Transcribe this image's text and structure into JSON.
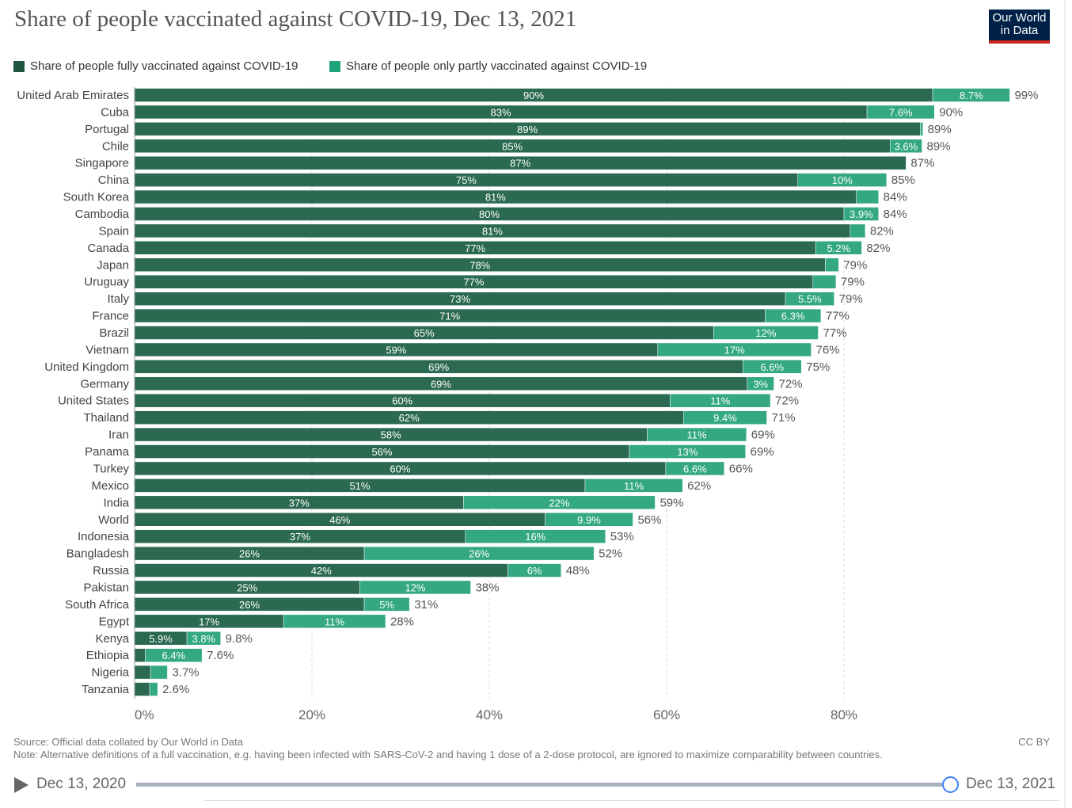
{
  "header": {
    "title": "Share of people vaccinated against COVID-19, Dec 13, 2021",
    "logo_text": "Our World in Data"
  },
  "colors": {
    "full": "#2b6a50",
    "partial": "#33a883"
  },
  "chart_data": {
    "type": "bar",
    "orientation": "horizontal-stacked",
    "title": "Share of people vaccinated against COVID-19, Dec 13, 2021",
    "legend": [
      "Share of people fully vaccinated against COVID-19",
      "Share of people only partly vaccinated against COVID-19"
    ],
    "legend_position": "top-left",
    "xlim": [
      0,
      99
    ],
    "xticks": [
      "0%",
      "20%",
      "40%",
      "60%",
      "80%"
    ],
    "xtick_values": [
      0,
      20,
      40,
      60,
      80
    ],
    "grid": true,
    "rows": [
      {
        "country": "United Arab Emirates",
        "full": 90,
        "partial": 8.7,
        "full_label": "90%",
        "partial_label": "8.7%",
        "total": "99%"
      },
      {
        "country": "Cuba",
        "full": 82.6,
        "partial": 7.6,
        "full_label": "83%",
        "partial_label": "7.6%",
        "total": "90%"
      },
      {
        "country": "Portugal",
        "full": 88.6,
        "partial": 0.3,
        "full_label": "89%",
        "partial_label": null,
        "total": "89%"
      },
      {
        "country": "Chile",
        "full": 85.2,
        "partial": 3.6,
        "full_label": "85%",
        "partial_label": "3.6%",
        "total": "89%"
      },
      {
        "country": "Singapore",
        "full": 87,
        "partial": 0,
        "full_label": "87%",
        "partial_label": null,
        "total": "87%"
      },
      {
        "country": "China",
        "full": 74.8,
        "partial": 10,
        "full_label": "75%",
        "partial_label": "10%",
        "total": "85%"
      },
      {
        "country": "South Korea",
        "full": 81.4,
        "partial": 2.5,
        "full_label": "81%",
        "partial_label": null,
        "total": "84%"
      },
      {
        "country": "Cambodia",
        "full": 80,
        "partial": 3.9,
        "full_label": "80%",
        "partial_label": "3.9%",
        "total": "84%"
      },
      {
        "country": "Spain",
        "full": 80.7,
        "partial": 1.7,
        "full_label": "81%",
        "partial_label": null,
        "total": "82%"
      },
      {
        "country": "Canada",
        "full": 76.8,
        "partial": 5.2,
        "full_label": "77%",
        "partial_label": "5.2%",
        "total": "82%"
      },
      {
        "country": "Japan",
        "full": 77.9,
        "partial": 1.5,
        "full_label": "78%",
        "partial_label": null,
        "total": "79%"
      },
      {
        "country": "Uruguay",
        "full": 76.5,
        "partial": 2.6,
        "full_label": "77%",
        "partial_label": null,
        "total": "79%"
      },
      {
        "country": "Italy",
        "full": 73.4,
        "partial": 5.5,
        "full_label": "73%",
        "partial_label": "5.5%",
        "total": "79%"
      },
      {
        "country": "France",
        "full": 71.1,
        "partial": 6.3,
        "full_label": "71%",
        "partial_label": "6.3%",
        "total": "77%"
      },
      {
        "country": "Brazil",
        "full": 65.3,
        "partial": 11.8,
        "full_label": "65%",
        "partial_label": "12%",
        "total": "77%"
      },
      {
        "country": "Vietnam",
        "full": 59,
        "partial": 17.3,
        "full_label": "59%",
        "partial_label": "17%",
        "total": "76%"
      },
      {
        "country": "United Kingdom",
        "full": 68.6,
        "partial": 6.6,
        "full_label": "69%",
        "partial_label": "6.6%",
        "total": "75%"
      },
      {
        "country": "Germany",
        "full": 69.1,
        "partial": 3,
        "full_label": "69%",
        "partial_label": "3%",
        "total": "72%"
      },
      {
        "country": "United States",
        "full": 60.4,
        "partial": 11.3,
        "full_label": "60%",
        "partial_label": "11%",
        "total": "72%"
      },
      {
        "country": "Thailand",
        "full": 61.9,
        "partial": 9.4,
        "full_label": "62%",
        "partial_label": "9.4%",
        "total": "71%"
      },
      {
        "country": "Iran",
        "full": 57.8,
        "partial": 11.2,
        "full_label": "58%",
        "partial_label": "11%",
        "total": "69%"
      },
      {
        "country": "Panama",
        "full": 55.8,
        "partial": 13.1,
        "full_label": "56%",
        "partial_label": "13%",
        "total": "69%"
      },
      {
        "country": "Turkey",
        "full": 59.9,
        "partial": 6.6,
        "full_label": "60%",
        "partial_label": "6.6%",
        "total": "66%"
      },
      {
        "country": "Mexico",
        "full": 50.8,
        "partial": 11,
        "full_label": "51%",
        "partial_label": "11%",
        "total": "62%"
      },
      {
        "country": "India",
        "full": 37.1,
        "partial": 21.6,
        "full_label": "37%",
        "partial_label": "22%",
        "total": "59%"
      },
      {
        "country": "World",
        "full": 46.3,
        "partial": 9.9,
        "full_label": "46%",
        "partial_label": "9.9%",
        "total": "56%"
      },
      {
        "country": "Indonesia",
        "full": 37.3,
        "partial": 15.8,
        "full_label": "37%",
        "partial_label": "16%",
        "total": "53%"
      },
      {
        "country": "Bangladesh",
        "full": 25.9,
        "partial": 25.9,
        "full_label": "26%",
        "partial_label": "26%",
        "total": "52%"
      },
      {
        "country": "Russia",
        "full": 42.1,
        "partial": 6,
        "full_label": "42%",
        "partial_label": "6%",
        "total": "48%"
      },
      {
        "country": "Pakistan",
        "full": 25.4,
        "partial": 12.5,
        "full_label": "25%",
        "partial_label": "12%",
        "total": "38%"
      },
      {
        "country": "South Africa",
        "full": 25.9,
        "partial": 5.1,
        "full_label": "26%",
        "partial_label": "5%",
        "total": "31%"
      },
      {
        "country": "Egypt",
        "full": 16.8,
        "partial": 11.5,
        "full_label": "17%",
        "partial_label": "11%",
        "total": "28%"
      },
      {
        "country": "Kenya",
        "full": 5.9,
        "partial": 3.8,
        "full_label": "5.9%",
        "partial_label": "3.8%",
        "total": "9.8%"
      },
      {
        "country": "Ethiopia",
        "full": 1.2,
        "partial": 6.4,
        "full_label": null,
        "partial_label": "6.4%",
        "total": "7.6%"
      },
      {
        "country": "Nigeria",
        "full": 1.8,
        "partial": 1.9,
        "full_label": null,
        "partial_label": null,
        "total": "3.7%"
      },
      {
        "country": "Tanzania",
        "full": 1.7,
        "partial": 0.9,
        "full_label": null,
        "partial_label": null,
        "total": "2.6%"
      }
    ]
  },
  "footer": {
    "source": "Source: Official data collated by Our World in Data",
    "note": "Note: Alternative definitions of a full vaccination, e.g. having been infected with SARS-CoV-2 and having 1 dose of a 2-dose protocol, are ignored to maximize comparability between countries.",
    "license": "CC BY"
  },
  "timeline": {
    "start": "Dec 13, 2020",
    "end": "Dec 13, 2021",
    "position": 1.0
  }
}
